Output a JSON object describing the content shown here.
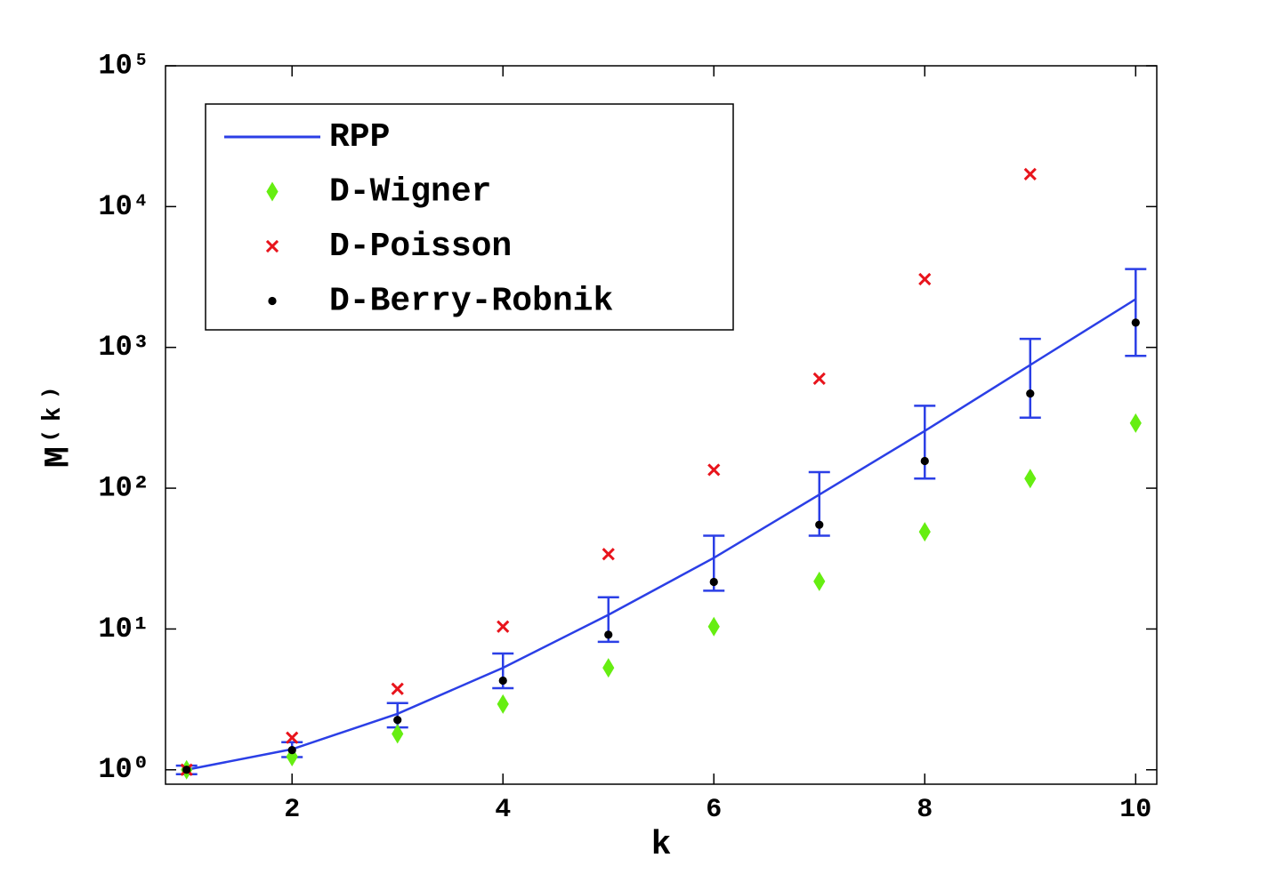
{
  "chart_data": {
    "type": "scatter",
    "xlabel": "k",
    "ylabel": "M⁽ᵏ⁾",
    "xlim": [
      0.8,
      10.2
    ],
    "xticks": [
      2,
      4,
      6,
      8,
      10
    ],
    "ylim": [
      0.79,
      100000
    ],
    "log_y": true,
    "yticks": [
      {
        "value": 1,
        "label": "10⁰"
      },
      {
        "value": 10,
        "label": "10¹"
      },
      {
        "value": 100,
        "label": "10²"
      },
      {
        "value": 1000,
        "label": "10³"
      },
      {
        "value": 10000,
        "label": "10⁴"
      },
      {
        "value": 100000,
        "label": "10⁵"
      }
    ],
    "legend": "upper left",
    "series": [
      {
        "name": "RPP",
        "style": "line",
        "color": "#2b3fe6",
        "x": [
          1,
          2,
          3,
          4,
          5,
          6,
          7,
          8,
          9,
          10
        ],
        "values": [
          1,
          1.4,
          2.5,
          5.3,
          12.6,
          32,
          90,
          255,
          750,
          2200
        ],
        "lower": [
          0.93,
          1.23,
          2.0,
          3.8,
          8.1,
          18.7,
          46,
          117,
          317,
          870
        ],
        "upper": [
          1.07,
          1.57,
          2.98,
          6.7,
          16.8,
          46,
          130,
          385,
          1150,
          3600
        ]
      },
      {
        "name": "D-Wigner",
        "style": "diamond",
        "color": "#66ee11",
        "x": [
          1,
          2,
          3,
          4,
          5,
          6,
          7,
          8,
          9,
          10
        ],
        "values": [
          1.0,
          1.24,
          1.8,
          2.93,
          5.3,
          10.4,
          21.8,
          49,
          117,
          290
        ]
      },
      {
        "name": "D-Poisson",
        "style": "cross",
        "color": "#e8141c",
        "x": [
          1,
          2,
          3,
          4,
          5,
          6,
          7,
          8,
          9
        ],
        "values": [
          1.0,
          1.69,
          3.76,
          10.4,
          34,
          135,
          600,
          3050,
          17000
        ]
      },
      {
        "name": "D-Berry-Robnik",
        "style": "dot",
        "color": "#000000",
        "x": [
          1,
          2,
          3,
          4,
          5,
          6,
          7,
          8,
          9,
          10
        ],
        "values": [
          1,
          1.38,
          2.26,
          4.3,
          9.1,
          21.6,
          55,
          156,
          470,
          1500
        ]
      }
    ]
  }
}
